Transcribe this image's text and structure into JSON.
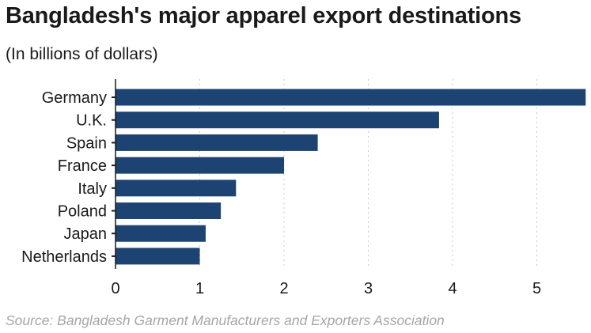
{
  "title": "Bangladesh's major apparel export destinations",
  "subtitle": "(In billions of dollars)",
  "source": "Source: Bangladesh Garment Manufacturers and Exporters Association",
  "colors": {
    "bar": "#1c4372",
    "grid": "#c8c8c8",
    "axis": "#1a1a1a",
    "source_text": "#a6a6a6"
  },
  "chart_data": {
    "type": "bar",
    "orientation": "horizontal",
    "categories": [
      "Germany",
      "U.K.",
      "Spain",
      "France",
      "Italy",
      "Poland",
      "Japan",
      "Netherlands"
    ],
    "values": [
      5.58,
      3.84,
      2.4,
      2.0,
      1.43,
      1.25,
      1.07,
      1.0
    ],
    "xlim": [
      0,
      5.6
    ],
    "xticks": [
      "0",
      "1",
      "2",
      "3",
      "4",
      "5"
    ],
    "grid": "vertical dotted",
    "legend": "none",
    "xlabel": "",
    "ylabel": ""
  }
}
